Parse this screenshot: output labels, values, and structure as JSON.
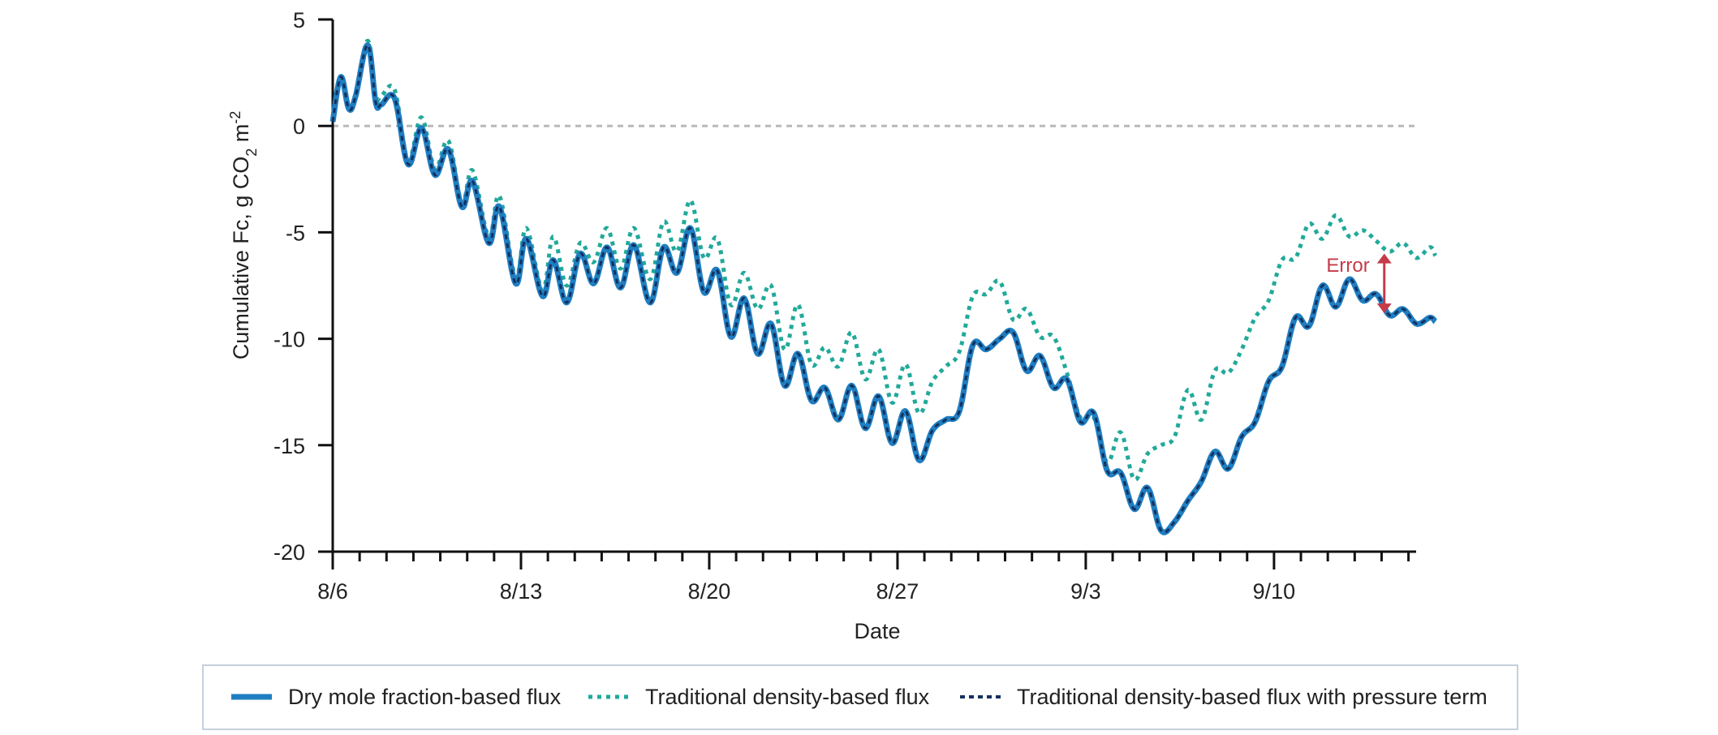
{
  "chart_data": {
    "type": "line",
    "title": "",
    "xlabel": "Date",
    "ylabel_main": "Cumulative Fc, g CO",
    "ylabel_sub2": "2",
    "ylabel_unit": " m",
    "ylabel_sup": "-2",
    "ylim": [
      -20,
      5
    ],
    "yticks": [
      5,
      0,
      -5,
      -10,
      -15,
      -20
    ],
    "xlim_days": [
      0,
      40.5
    ],
    "xticks": [
      {
        "day": 0,
        "label": "8/6"
      },
      {
        "day": 7,
        "label": "8/13"
      },
      {
        "day": 14,
        "label": "8/20"
      },
      {
        "day": 21,
        "label": "8/27"
      },
      {
        "day": 28,
        "label": "9/3"
      },
      {
        "day": 35,
        "label": "9/10"
      }
    ],
    "zero_line": true,
    "legend_position": "bottom",
    "series": [
      {
        "name": "Dry mole fraction-based flux",
        "color": "#1f7ec1",
        "style": "solid",
        "points": [
          [
            0,
            0.2
          ],
          [
            0.3,
            2.3
          ],
          [
            0.6,
            0.8
          ],
          [
            0.85,
            1.4
          ],
          [
            1.3,
            3.8
          ],
          [
            1.6,
            1.1
          ],
          [
            1.8,
            1.0
          ],
          [
            2.3,
            1.3
          ],
          [
            2.8,
            -1.8
          ],
          [
            3.3,
            -0.1
          ],
          [
            3.8,
            -2.3
          ],
          [
            4.3,
            -1.1
          ],
          [
            4.8,
            -3.8
          ],
          [
            5.2,
            -2.6
          ],
          [
            5.8,
            -5.5
          ],
          [
            6.2,
            -3.8
          ],
          [
            6.8,
            -7.4
          ],
          [
            7.2,
            -5.3
          ],
          [
            7.8,
            -8.0
          ],
          [
            8.2,
            -6.3
          ],
          [
            8.7,
            -8.3
          ],
          [
            9.2,
            -6.0
          ],
          [
            9.7,
            -7.4
          ],
          [
            10.2,
            -5.7
          ],
          [
            10.7,
            -7.6
          ],
          [
            11.2,
            -5.6
          ],
          [
            11.8,
            -8.3
          ],
          [
            12.3,
            -5.7
          ],
          [
            12.8,
            -6.9
          ],
          [
            13.3,
            -4.8
          ],
          [
            13.8,
            -7.8
          ],
          [
            14.3,
            -6.8
          ],
          [
            14.8,
            -9.9
          ],
          [
            15.3,
            -8.1
          ],
          [
            15.8,
            -10.7
          ],
          [
            16.3,
            -9.3
          ],
          [
            16.8,
            -12.2
          ],
          [
            17.3,
            -10.7
          ],
          [
            17.8,
            -12.9
          ],
          [
            18.3,
            -12.3
          ],
          [
            18.8,
            -13.8
          ],
          [
            19.3,
            -12.2
          ],
          [
            19.8,
            -14.2
          ],
          [
            20.3,
            -12.7
          ],
          [
            20.8,
            -14.9
          ],
          [
            21.3,
            -13.4
          ],
          [
            21.8,
            -15.7
          ],
          [
            22.3,
            -14.3
          ],
          [
            22.8,
            -13.8
          ],
          [
            23.3,
            -13.4
          ],
          [
            23.8,
            -10.3
          ],
          [
            24.3,
            -10.5
          ],
          [
            24.8,
            -10.0
          ],
          [
            25.3,
            -9.7
          ],
          [
            25.8,
            -11.5
          ],
          [
            26.3,
            -10.8
          ],
          [
            26.8,
            -12.3
          ],
          [
            27.3,
            -11.9
          ],
          [
            27.8,
            -13.9
          ],
          [
            28.3,
            -13.5
          ],
          [
            28.8,
            -16.2
          ],
          [
            29.3,
            -16.3
          ],
          [
            29.8,
            -18.0
          ],
          [
            30.3,
            -17.0
          ],
          [
            30.8,
            -19.0
          ],
          [
            31.3,
            -18.6
          ],
          [
            31.8,
            -17.6
          ],
          [
            32.3,
            -16.7
          ],
          [
            32.8,
            -15.3
          ],
          [
            33.3,
            -16.1
          ],
          [
            33.8,
            -14.6
          ],
          [
            34.3,
            -13.9
          ],
          [
            34.8,
            -12.0
          ],
          [
            35.3,
            -11.3
          ],
          [
            35.8,
            -9.0
          ],
          [
            36.3,
            -9.4
          ],
          [
            36.8,
            -7.5
          ],
          [
            37.3,
            -8.5
          ],
          [
            37.8,
            -7.2
          ],
          [
            38.3,
            -8.2
          ],
          [
            38.8,
            -7.9
          ],
          [
            39.3,
            -8.9
          ],
          [
            39.8,
            -8.6
          ],
          [
            40.3,
            -9.3
          ],
          [
            40.8,
            -9.0
          ],
          [
            41.0,
            -9.2
          ]
        ]
      },
      {
        "name": "Traditional density-based flux",
        "color": "#21a99a",
        "style": "dotted",
        "points": [
          [
            0,
            0.2
          ],
          [
            0.3,
            2.3
          ],
          [
            0.6,
            0.8
          ],
          [
            0.85,
            1.4
          ],
          [
            1.3,
            4.0
          ],
          [
            1.6,
            1.4
          ],
          [
            1.8,
            1.4
          ],
          [
            2.3,
            1.7
          ],
          [
            2.8,
            -1.6
          ],
          [
            3.3,
            0.4
          ],
          [
            3.8,
            -2.0
          ],
          [
            4.3,
            -0.7
          ],
          [
            4.8,
            -3.6
          ],
          [
            5.2,
            -2.1
          ],
          [
            5.8,
            -5.2
          ],
          [
            6.2,
            -3.3
          ],
          [
            6.8,
            -7.1
          ],
          [
            7.2,
            -4.8
          ],
          [
            7.8,
            -7.7
          ],
          [
            8.2,
            -5.2
          ],
          [
            8.7,
            -7.5
          ],
          [
            9.2,
            -5.5
          ],
          [
            9.7,
            -6.4
          ],
          [
            10.2,
            -4.8
          ],
          [
            10.7,
            -6.7
          ],
          [
            11.2,
            -4.8
          ],
          [
            11.8,
            -7.2
          ],
          [
            12.3,
            -4.5
          ],
          [
            12.8,
            -5.9
          ],
          [
            13.3,
            -3.5
          ],
          [
            13.8,
            -6.2
          ],
          [
            14.3,
            -5.3
          ],
          [
            14.8,
            -8.4
          ],
          [
            15.3,
            -6.9
          ],
          [
            15.8,
            -8.6
          ],
          [
            16.3,
            -7.5
          ],
          [
            16.8,
            -10.5
          ],
          [
            17.3,
            -8.4
          ],
          [
            17.8,
            -11.2
          ],
          [
            18.3,
            -10.4
          ],
          [
            18.8,
            -11.3
          ],
          [
            19.3,
            -9.7
          ],
          [
            19.8,
            -11.9
          ],
          [
            20.3,
            -10.5
          ],
          [
            20.8,
            -13.0
          ],
          [
            21.3,
            -11.2
          ],
          [
            21.8,
            -13.5
          ],
          [
            22.3,
            -12.0
          ],
          [
            22.8,
            -11.3
          ],
          [
            23.3,
            -10.6
          ],
          [
            23.8,
            -8.0
          ],
          [
            24.3,
            -7.9
          ],
          [
            24.8,
            -7.3
          ],
          [
            25.3,
            -9.1
          ],
          [
            25.8,
            -8.6
          ],
          [
            26.3,
            -9.9
          ],
          [
            26.8,
            -9.9
          ],
          [
            27.3,
            -11.6
          ],
          [
            27.8,
            -13.7
          ],
          [
            28.3,
            -13.7
          ],
          [
            28.8,
            -15.8
          ],
          [
            29.3,
            -14.4
          ],
          [
            29.8,
            -16.6
          ],
          [
            30.3,
            -15.4
          ],
          [
            30.8,
            -15.0
          ],
          [
            31.3,
            -14.6
          ],
          [
            31.8,
            -12.4
          ],
          [
            32.3,
            -13.8
          ],
          [
            32.8,
            -11.5
          ],
          [
            33.3,
            -11.6
          ],
          [
            33.8,
            -10.5
          ],
          [
            34.3,
            -9.0
          ],
          [
            34.8,
            -8.2
          ],
          [
            35.3,
            -6.3
          ],
          [
            35.8,
            -6.2
          ],
          [
            36.3,
            -4.6
          ],
          [
            36.8,
            -5.3
          ],
          [
            37.3,
            -4.2
          ],
          [
            37.8,
            -5.2
          ],
          [
            38.3,
            -4.9
          ],
          [
            38.8,
            -5.4
          ],
          [
            39.3,
            -5.9
          ],
          [
            39.8,
            -5.5
          ],
          [
            40.3,
            -6.2
          ],
          [
            40.8,
            -5.7
          ],
          [
            41.0,
            -6.1
          ]
        ]
      },
      {
        "name": "Traditional density-based flux with pressure term",
        "color": "#14305e",
        "style": "dashed",
        "points": "same as Dry mole fraction-based flux"
      }
    ],
    "annotation": {
      "text": "Error",
      "color": "#c43b4a",
      "day": 39.1,
      "y_top": -6.0,
      "y_bottom": -8.8
    }
  }
}
